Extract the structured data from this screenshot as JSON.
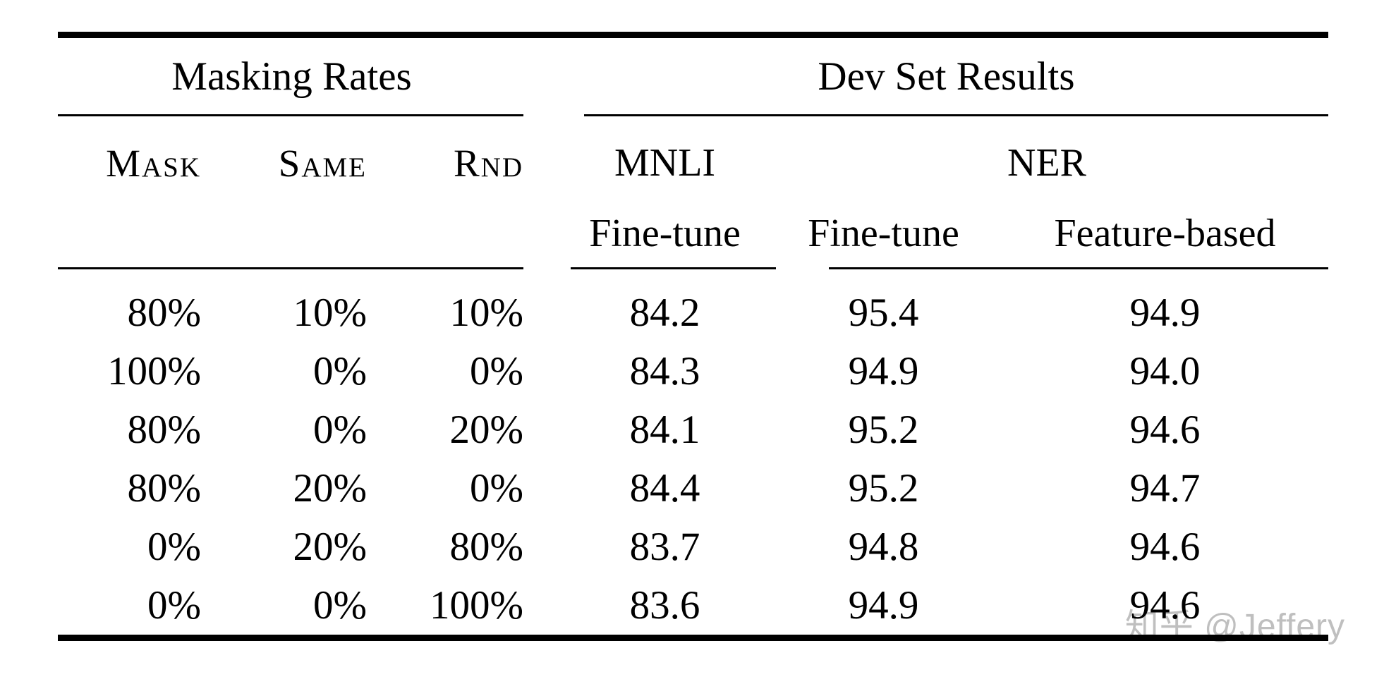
{
  "page": {
    "background": "#ffffff",
    "text_color": "#000000",
    "rule_color": "#000000"
  },
  "table": {
    "group_headers": [
      {
        "label": "Masking Rates"
      },
      {
        "label": "Dev Set Results"
      }
    ],
    "sub_headers": {
      "mask": "Mask",
      "same": "Same",
      "rnd": "Rnd",
      "mnli": "MNLI",
      "ner": "NER",
      "mnli_fine_tune": "Fine-tune",
      "ner_fine_tune": "Fine-tune",
      "ner_feature_based": "Feature-based"
    },
    "rows": [
      {
        "mask": "80%",
        "same": "10%",
        "rnd": "10%",
        "mnli_ft": "84.2",
        "ner_ft": "95.4",
        "ner_fb": "94.9"
      },
      {
        "mask": "100%",
        "same": "0%",
        "rnd": "0%",
        "mnli_ft": "84.3",
        "ner_ft": "94.9",
        "ner_fb": "94.0"
      },
      {
        "mask": "80%",
        "same": "0%",
        "rnd": "20%",
        "mnli_ft": "84.1",
        "ner_ft": "95.2",
        "ner_fb": "94.6"
      },
      {
        "mask": "80%",
        "same": "20%",
        "rnd": "0%",
        "mnli_ft": "84.4",
        "ner_ft": "95.2",
        "ner_fb": "94.7"
      },
      {
        "mask": "0%",
        "same": "20%",
        "rnd": "80%",
        "mnli_ft": "83.7",
        "ner_ft": "94.8",
        "ner_fb": "94.6"
      },
      {
        "mask": "0%",
        "same": "0%",
        "rnd": "100%",
        "mnli_ft": "83.6",
        "ner_ft": "94.9",
        "ner_fb": "94.6"
      }
    ]
  },
  "watermark": {
    "text": "知乎 @Jeffery",
    "color": "#bfbfbf"
  }
}
